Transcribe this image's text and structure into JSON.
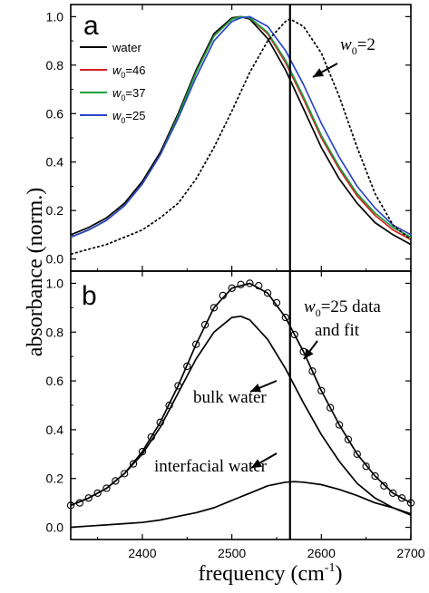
{
  "chart_data": [
    {
      "type": "line",
      "panel": "a",
      "xlim": [
        2320,
        2700
      ],
      "ylim": [
        -0.05,
        1.05
      ],
      "yticks": [
        "0.0",
        "0.2",
        "0.4",
        "0.6",
        "0.8",
        "1.0"
      ],
      "xticks": [],
      "xlabel": "",
      "grid": false,
      "legend": "top-left",
      "vertical_line_x": 2565,
      "series": [
        {
          "name": "water",
          "color": "#000000",
          "style": "solid",
          "legend": true,
          "x": [
            2320,
            2340,
            2360,
            2380,
            2400,
            2420,
            2440,
            2460,
            2480,
            2500,
            2510,
            2520,
            2540,
            2560,
            2580,
            2600,
            2620,
            2640,
            2660,
            2680,
            2700
          ],
          "y": [
            0.1,
            0.13,
            0.17,
            0.23,
            0.32,
            0.44,
            0.6,
            0.78,
            0.93,
            0.995,
            1.0,
            0.99,
            0.91,
            0.78,
            0.62,
            0.46,
            0.33,
            0.23,
            0.15,
            0.1,
            0.06
          ]
        },
        {
          "name": "=46",
          "sub": "0",
          "color": "#d62020",
          "style": "solid",
          "legend": true,
          "x": [
            2320,
            2340,
            2360,
            2380,
            2400,
            2420,
            2440,
            2460,
            2480,
            2500,
            2510,
            2520,
            2540,
            2560,
            2580,
            2600,
            2620,
            2640,
            2660,
            2680,
            2700
          ],
          "y": [
            0.09,
            0.12,
            0.16,
            0.22,
            0.31,
            0.43,
            0.59,
            0.77,
            0.92,
            0.99,
            1.0,
            0.995,
            0.93,
            0.81,
            0.66,
            0.5,
            0.37,
            0.26,
            0.18,
            0.12,
            0.08
          ]
        },
        {
          "name": "=37",
          "sub": "0",
          "color": "#1a9e3c",
          "style": "solid",
          "legend": true,
          "x": [
            2320,
            2340,
            2360,
            2380,
            2400,
            2420,
            2440,
            2460,
            2480,
            2500,
            2510,
            2520,
            2540,
            2560,
            2580,
            2600,
            2620,
            2640,
            2660,
            2680,
            2700
          ],
          "y": [
            0.09,
            0.12,
            0.16,
            0.22,
            0.31,
            0.43,
            0.59,
            0.77,
            0.92,
            0.99,
            1.0,
            0.995,
            0.935,
            0.82,
            0.67,
            0.51,
            0.38,
            0.27,
            0.19,
            0.13,
            0.09
          ]
        },
        {
          "name": "=25",
          "sub": "0",
          "color": "#2b45c8",
          "style": "solid",
          "legend": true,
          "x": [
            2320,
            2340,
            2360,
            2380,
            2400,
            2420,
            2440,
            2460,
            2480,
            2500,
            2510,
            2520,
            2540,
            2560,
            2580,
            2600,
            2620,
            2640,
            2660,
            2680,
            2700
          ],
          "y": [
            0.09,
            0.12,
            0.16,
            0.22,
            0.31,
            0.43,
            0.58,
            0.75,
            0.9,
            0.98,
            0.995,
            1.0,
            0.96,
            0.86,
            0.72,
            0.56,
            0.42,
            0.3,
            0.21,
            0.14,
            0.1
          ]
        },
        {
          "name": "=2",
          "sub": "0",
          "color": "#000000",
          "style": "dotted",
          "legend": false,
          "x": [
            2320,
            2340,
            2360,
            2380,
            2400,
            2420,
            2440,
            2460,
            2480,
            2500,
            2520,
            2540,
            2560,
            2565,
            2580,
            2600,
            2620,
            2640,
            2660,
            2680,
            2700
          ],
          "y": [
            0.02,
            0.04,
            0.06,
            0.09,
            0.12,
            0.17,
            0.23,
            0.33,
            0.46,
            0.61,
            0.77,
            0.9,
            0.98,
            0.99,
            0.96,
            0.85,
            0.67,
            0.46,
            0.27,
            0.14,
            0.08
          ]
        }
      ],
      "annotations": [
        {
          "prefix": "w",
          "sub": "0",
          "suffix": "=2",
          "arrow_to": [
            2605,
            0.86
          ],
          "italic_prefix": true
        }
      ]
    },
    {
      "type": "line",
      "panel": "b",
      "xlim": [
        2320,
        2700
      ],
      "ylim": [
        -0.05,
        1.05
      ],
      "yticks": [
        "0.0",
        "0.2",
        "0.4",
        "0.6",
        "0.8",
        "1.0"
      ],
      "xticks": [
        "2400",
        "2500",
        "2600",
        "2700"
      ],
      "xlabel": "frequency (cm",
      "xlabel_sup": "-1",
      "xlabel_tail": ")",
      "ylabel": "absorbance (norm.)",
      "grid": false,
      "vertical_line_x": 2565,
      "series": [
        {
          "name": "fit",
          "color": "#000000",
          "style": "solid",
          "x": [
            2320,
            2340,
            2360,
            2380,
            2400,
            2420,
            2440,
            2460,
            2480,
            2500,
            2520,
            2540,
            2560,
            2580,
            2600,
            2620,
            2640,
            2660,
            2680,
            2700
          ],
          "y": [
            0.09,
            0.12,
            0.16,
            0.22,
            0.31,
            0.43,
            0.58,
            0.75,
            0.9,
            0.98,
            1.0,
            0.96,
            0.86,
            0.72,
            0.56,
            0.42,
            0.3,
            0.21,
            0.14,
            0.1
          ]
        },
        {
          "name": "bulk water",
          "color": "#000000",
          "style": "solid",
          "x": [
            2320,
            2340,
            2360,
            2380,
            2400,
            2420,
            2440,
            2460,
            2480,
            2500,
            2510,
            2520,
            2540,
            2560,
            2580,
            2600,
            2620,
            2640,
            2660,
            2680,
            2700
          ],
          "y": [
            0.09,
            0.12,
            0.16,
            0.22,
            0.3,
            0.41,
            0.55,
            0.69,
            0.8,
            0.86,
            0.865,
            0.85,
            0.77,
            0.65,
            0.51,
            0.38,
            0.27,
            0.18,
            0.12,
            0.08,
            0.05
          ]
        },
        {
          "name": "interfacial water",
          "color": "#000000",
          "style": "solid",
          "x": [
            2320,
            2340,
            2360,
            2380,
            2400,
            2420,
            2440,
            2460,
            2480,
            2500,
            2520,
            2540,
            2560,
            2570,
            2580,
            2600,
            2620,
            2640,
            2660,
            2680,
            2700
          ],
          "y": [
            0.0,
            0.005,
            0.01,
            0.015,
            0.02,
            0.03,
            0.045,
            0.06,
            0.08,
            0.11,
            0.14,
            0.17,
            0.185,
            0.187,
            0.185,
            0.175,
            0.155,
            0.13,
            0.1,
            0.08,
            0.055
          ]
        },
        {
          "name": "data",
          "color": "#000000",
          "style": "circles",
          "x": [
            2320,
            2330,
            2340,
            2350,
            2360,
            2370,
            2380,
            2390,
            2400,
            2410,
            2420,
            2430,
            2440,
            2450,
            2460,
            2470,
            2480,
            2490,
            2500,
            2510,
            2520,
            2530,
            2540,
            2550,
            2560,
            2570,
            2580,
            2590,
            2600,
            2610,
            2620,
            2630,
            2640,
            2650,
            2660,
            2670,
            2680,
            2690,
            2700
          ],
          "y": [
            0.09,
            0.1,
            0.12,
            0.14,
            0.16,
            0.19,
            0.22,
            0.26,
            0.31,
            0.37,
            0.43,
            0.5,
            0.58,
            0.66,
            0.75,
            0.83,
            0.9,
            0.95,
            0.98,
            0.995,
            1.0,
            0.99,
            0.96,
            0.92,
            0.86,
            0.79,
            0.72,
            0.64,
            0.56,
            0.49,
            0.42,
            0.36,
            0.3,
            0.25,
            0.21,
            0.17,
            0.14,
            0.12,
            0.1
          ]
        }
      ],
      "annotations": [
        {
          "text": "bulk water",
          "arrow_to": [
            2560,
            0.72
          ]
        },
        {
          "text": "interfacial water",
          "arrow_to": [
            2530,
            0.14
          ]
        },
        {
          "prefix": "w",
          "sub": "0",
          "suffix": "=25 data",
          "line2": "and fit",
          "arrow_to": [
            2587,
            0.7
          ],
          "italic_prefix": true
        }
      ]
    }
  ],
  "figure": {
    "ylabel_text": "absorbance (norm.)",
    "panel_a_letter": "a",
    "panel_b_letter": "b",
    "legend_water": "water",
    "legend_w": "w",
    "legend_sub": "0",
    "legend_46": "=46",
    "legend_37": "=37",
    "legend_25": "=25",
    "annot_w2_main": "w",
    "annot_w2_sub": "0",
    "annot_w2_tail": "=2",
    "annot_bulk": "bulk water",
    "annot_interfacial": "interfacial water",
    "annot_w25_main": "w",
    "annot_w25_sub": "0",
    "annot_w25_tail": "=25 data",
    "annot_w25_line2": "and fit",
    "xlabel_main": "frequency (cm",
    "xlabel_sup": "-1",
    "xlabel_tail": ")"
  }
}
